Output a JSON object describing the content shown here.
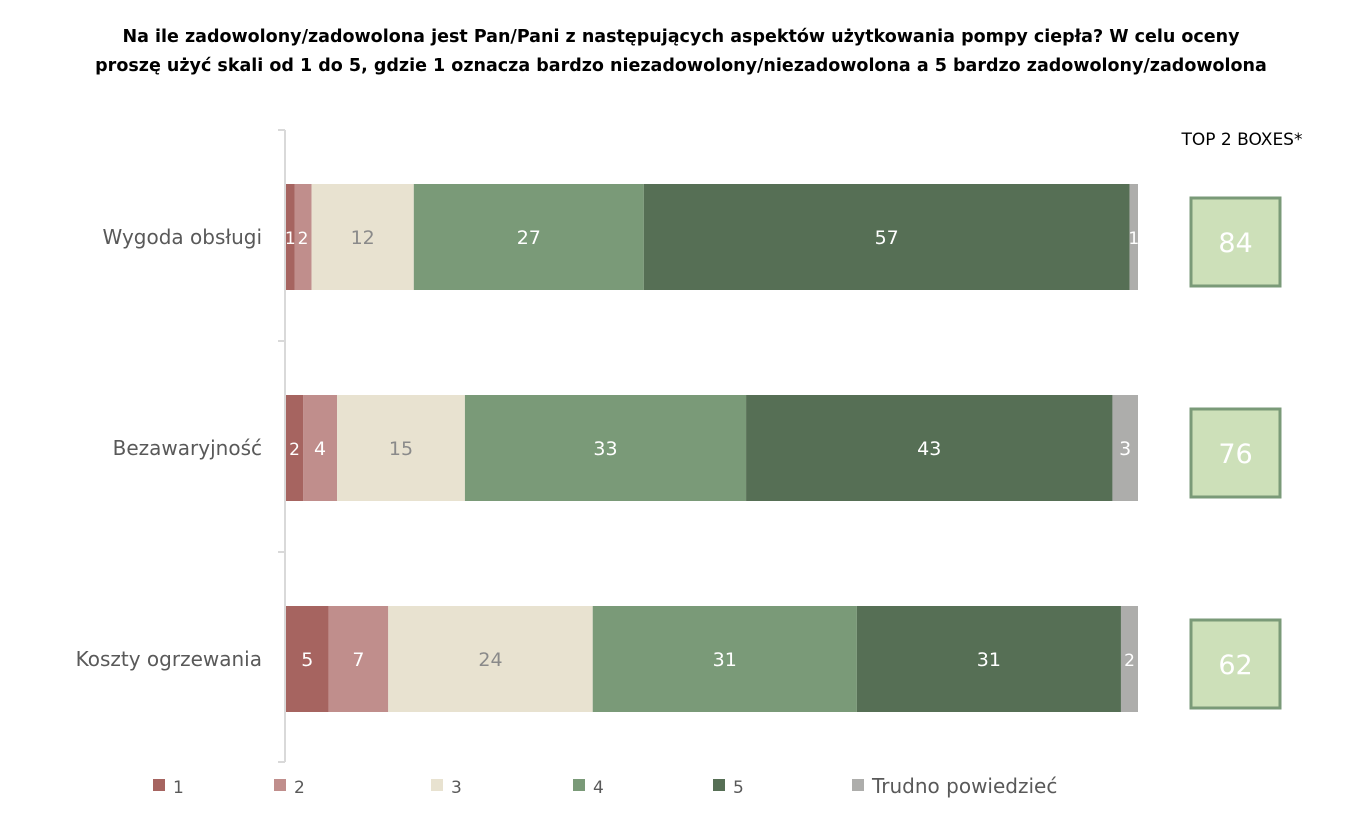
{
  "chart_data": {
    "type": "bar",
    "orientation": "horizontal",
    "stacked": true,
    "title_lines": [
      "Na ile zadowolony/zadowolona jest Pan/Pani z następujących aspektów użytkowania pompy ciepła? W celu oceny",
      "proszę użyć skali od 1 do 5, gdzie 1 oznacza bardzo niezadowolony/niezadowolona a 5 bardzo zadowolony/zadowolona"
    ],
    "categories": [
      "Wygoda obsługi",
      "Bezawaryjność",
      "Koszty ogrzewania"
    ],
    "series": [
      {
        "name": "1",
        "color": "#a66460",
        "label_color": "#ffffff",
        "values": [
          1,
          2,
          5
        ]
      },
      {
        "name": "2",
        "color": "#c08e8c",
        "label_color": "#ffffff",
        "values": [
          2,
          4,
          7
        ]
      },
      {
        "name": "3",
        "color": "#e8e2d0",
        "label_color": "#8a8a8a",
        "values": [
          12,
          15,
          24
        ]
      },
      {
        "name": "4",
        "color": "#7a9a78",
        "label_color": "#ffffff",
        "values": [
          27,
          33,
          31
        ]
      },
      {
        "name": "5",
        "color": "#566f55",
        "label_color": "#ffffff",
        "values": [
          57,
          43,
          31
        ]
      },
      {
        "name": "Trudno powiedzieć",
        "color": "#adadab",
        "label_color": "#ffffff",
        "values": [
          1,
          3,
          2
        ]
      }
    ],
    "xlim": [
      0,
      100
    ],
    "grid": false,
    "legend_placement": "bottom",
    "top2": {
      "header": "TOP 2 BOXES*",
      "values": [
        84,
        76,
        62
      ],
      "fill": "#cde0b9",
      "border": "#7a9a78"
    }
  }
}
